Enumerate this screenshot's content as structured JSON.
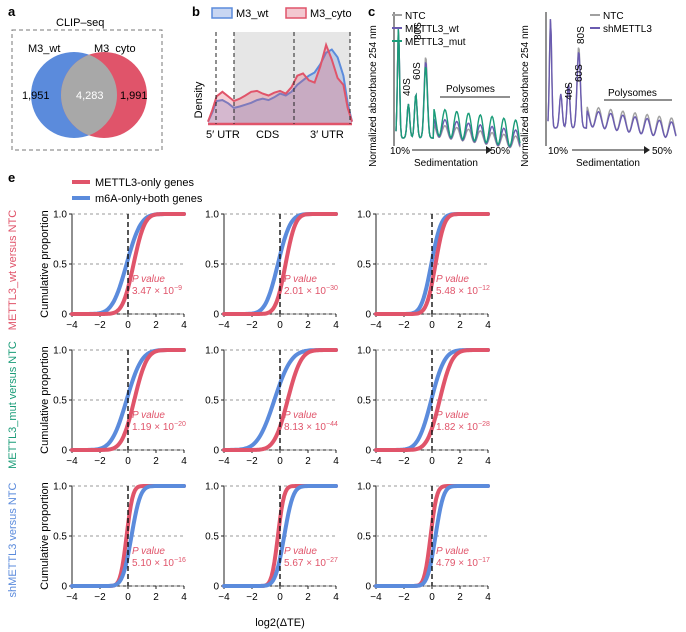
{
  "panel_labels": {
    "a": "a",
    "b": "b",
    "c": "c",
    "e": "e"
  },
  "colors": {
    "red": "#e0546a",
    "blue": "#5b8bdc",
    "gray": "#a0a0a0",
    "green": "#1a9c78",
    "purple": "#6a5bb0",
    "dashed": "#9a9a9a"
  },
  "chart_data": [
    {
      "id": "a",
      "type": "venn",
      "title": "CLIP–seq",
      "sets": [
        {
          "name": "M3_wt",
          "only": "1,951",
          "color": "#5b8bdc"
        },
        {
          "name": "M3_cyto",
          "only": "1,991",
          "color": "#e0546a"
        }
      ],
      "overlap": "4,283"
    },
    {
      "id": "b",
      "type": "area",
      "ylabel": "Density",
      "regions": [
        "5′ UTR",
        "CDS",
        "3′ UTR"
      ],
      "legend": [
        "M3_wt",
        "M3_cyto"
      ],
      "x": [
        0,
        0.03,
        0.06,
        0.1,
        0.14,
        0.18,
        0.22,
        0.26,
        0.3,
        0.34,
        0.38,
        0.42,
        0.46,
        0.5,
        0.54,
        0.58,
        0.62,
        0.66,
        0.7,
        0.74,
        0.78,
        0.82,
        0.86,
        0.9,
        0.94,
        0.97,
        1.0
      ],
      "series": [
        {
          "name": "M3_wt",
          "values": [
            0.05,
            0.25,
            0.5,
            0.52,
            0.45,
            0.35,
            0.38,
            0.42,
            0.46,
            0.52,
            0.55,
            0.52,
            0.58,
            0.66,
            0.62,
            0.7,
            0.85,
            0.95,
            1.05,
            1.12,
            1.3,
            1.55,
            1.62,
            1.45,
            1.05,
            0.45,
            0.05
          ]
        },
        {
          "name": "M3_cyto",
          "values": [
            0.05,
            0.3,
            0.6,
            0.7,
            0.6,
            0.5,
            0.55,
            0.62,
            0.7,
            0.72,
            0.66,
            0.62,
            0.68,
            0.72,
            0.66,
            0.8,
            1.05,
            1.1,
            0.95,
            0.9,
            1.25,
            1.72,
            1.4,
            1.0,
            0.85,
            0.35,
            0.05
          ]
        }
      ],
      "ylim": [
        0,
        2.0
      ]
    },
    {
      "id": "c1",
      "type": "line",
      "ylabel": "Normalized absorbance 254 nm",
      "xlabel": "Sedimentation",
      "xticks": [
        "10%",
        "50%"
      ],
      "peak_labels": [
        "40S",
        "60S",
        "80S"
      ],
      "region_label": "Polysomes",
      "series": [
        {
          "name": "NTC",
          "color": "#a0a0a0"
        },
        {
          "name": "METTL3_wt",
          "color": "#6a5bb0"
        },
        {
          "name": "METTL3_mut",
          "color": "#1a9c78"
        }
      ]
    },
    {
      "id": "c2",
      "type": "line",
      "ylabel": "Normalized absorbance 254 nm",
      "xlabel": "Sedimentation",
      "xticks": [
        "10%",
        "50%"
      ],
      "peak_labels": [
        "40S",
        "60S",
        "80S"
      ],
      "region_label": "Polysomes",
      "series": [
        {
          "name": "NTC",
          "color": "#a0a0a0"
        },
        {
          "name": "shMETTL3",
          "color": "#6a5bb0"
        }
      ]
    },
    {
      "id": "e",
      "type": "line",
      "subtype": "cumulative-distribution-grid",
      "legend": [
        "METTL3-only genes",
        "m6A-only+both genes"
      ],
      "row_labels": [
        "METTL3_wt versus NTC",
        "METTL3_mut versus NTC",
        "shMETTL3 versus NTC"
      ],
      "ylabel": "Cumulative proportion",
      "xlabel": "log2(ΔTE)",
      "xticks": [
        "−4",
        "−2",
        "0",
        "2",
        "4"
      ],
      "yticks": [
        "0",
        "0.5",
        "1.0"
      ],
      "xlim": [
        -4,
        4
      ],
      "ylim": [
        0,
        1.0
      ],
      "pvalue_label": "P value",
      "panels": [
        {
          "row": 0,
          "col": 0,
          "pvalue": "3.47 × 10",
          "exp": "−9",
          "red_shift": 0.4,
          "blue_shift": -0.1,
          "red_scale": 0.62,
          "blue_scale": 0.8
        },
        {
          "row": 0,
          "col": 1,
          "pvalue": "2.01 × 10",
          "exp": "−30",
          "red_shift": 0.4,
          "blue_shift": -0.15,
          "red_scale": 0.55,
          "blue_scale": 0.7
        },
        {
          "row": 0,
          "col": 2,
          "pvalue": "5.48 × 10",
          "exp": "−12",
          "red_shift": 0.25,
          "blue_shift": -0.05,
          "red_scale": 0.5,
          "blue_scale": 0.55
        },
        {
          "row": 1,
          "col": 0,
          "pvalue": "1.19 × 10",
          "exp": "−20",
          "red_shift": 0.45,
          "blue_shift": -0.1,
          "red_scale": 0.7,
          "blue_scale": 0.85
        },
        {
          "row": 1,
          "col": 1,
          "pvalue": "8.13 × 10",
          "exp": "−44",
          "red_shift": 0.55,
          "blue_shift": -0.4,
          "red_scale": 0.75,
          "blue_scale": 0.95
        },
        {
          "row": 1,
          "col": 2,
          "pvalue": "1.82 × 10",
          "exp": "−28",
          "red_shift": 0.55,
          "blue_shift": -0.05,
          "red_scale": 0.7,
          "blue_scale": 0.75
        },
        {
          "row": 2,
          "col": 0,
          "pvalue": "5.10 × 10",
          "exp": "−16",
          "red_shift": -0.1,
          "blue_shift": 0.25,
          "red_scale": 0.35,
          "blue_scale": 0.5
        },
        {
          "row": 2,
          "col": 1,
          "pvalue": "5.67 × 10",
          "exp": "−27",
          "red_shift": -0.15,
          "blue_shift": 0.3,
          "red_scale": 0.35,
          "blue_scale": 0.5
        },
        {
          "row": 2,
          "col": 2,
          "pvalue": "4.79 × 10",
          "exp": "−17",
          "red_shift": -0.1,
          "blue_shift": 0.25,
          "red_scale": 0.35,
          "blue_scale": 0.45
        }
      ]
    }
  ]
}
